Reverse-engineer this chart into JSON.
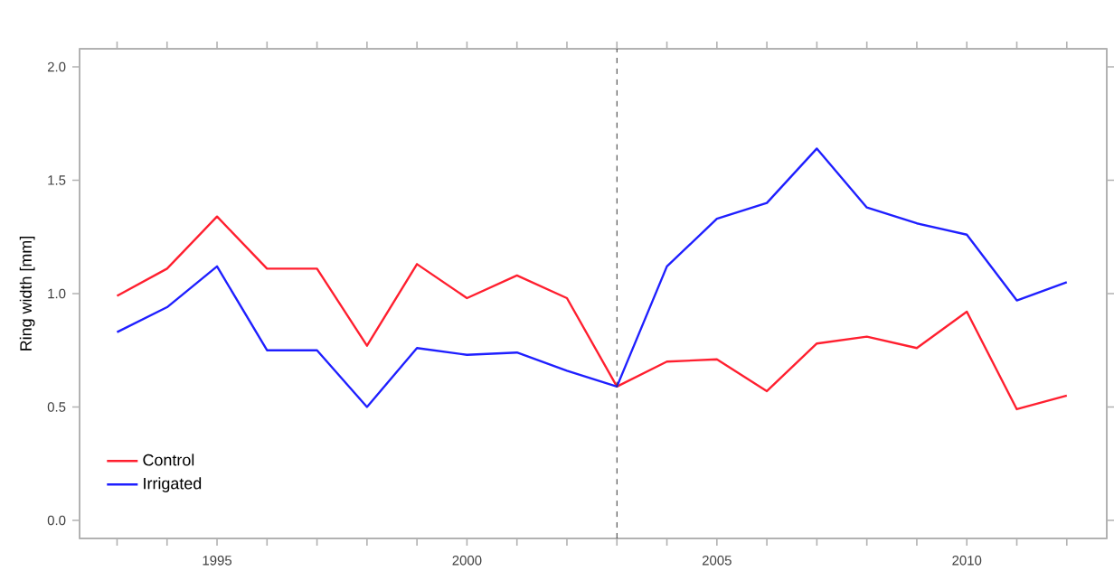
{
  "chart_data": {
    "type": "line",
    "ylabel": "Ring width [mm]",
    "x": [
      1993,
      1994,
      1995,
      1996,
      1997,
      1998,
      1999,
      2000,
      2001,
      2002,
      2003,
      2004,
      2005,
      2006,
      2007,
      2008,
      2009,
      2010,
      2011,
      2012
    ],
    "series": [
      {
        "name": "Control",
        "color": "#ff1f2f",
        "values": [
          0.99,
          1.11,
          1.34,
          1.11,
          1.11,
          0.77,
          1.13,
          0.98,
          1.08,
          0.98,
          0.59,
          0.7,
          0.71,
          0.57,
          0.78,
          0.81,
          0.76,
          0.92,
          0.49,
          0.55
        ]
      },
      {
        "name": "Irrigated",
        "color": "#1f1fff",
        "values": [
          0.83,
          0.94,
          1.12,
          0.75,
          0.75,
          0.5,
          0.76,
          0.73,
          0.74,
          0.66,
          0.59,
          1.12,
          1.33,
          1.4,
          1.64,
          1.38,
          1.31,
          1.26,
          0.97,
          1.05
        ]
      }
    ],
    "xlim": [
      1992.25,
      2012.8
    ],
    "ylim": [
      -0.08,
      2.08
    ],
    "xticks": [
      {
        "value": 1993,
        "label": null
      },
      {
        "value": 1994,
        "label": null
      },
      1995,
      {
        "value": 1996,
        "label": null
      },
      {
        "value": 1997,
        "label": null
      },
      {
        "value": 1998,
        "label": null
      },
      {
        "value": 1999,
        "label": null
      },
      2000,
      {
        "value": 2001,
        "label": null
      },
      {
        "value": 2002,
        "label": null
      },
      {
        "value": 2003,
        "label": null
      },
      {
        "value": 2004,
        "label": null
      },
      2005,
      {
        "value": 2006,
        "label": null
      },
      {
        "value": 2007,
        "label": null
      },
      {
        "value": 2008,
        "label": null
      },
      {
        "value": 2009,
        "label": null
      },
      2010,
      {
        "value": 2011,
        "label": null
      },
      {
        "value": 2012,
        "label": null
      }
    ],
    "yticks": [
      {
        "value": 0,
        "label": "0.0"
      },
      0.5,
      {
        "value": 1,
        "label": "1.0"
      },
      1.5,
      {
        "value": 2,
        "label": "2.0"
      }
    ],
    "ref_lines": [
      {
        "axis": "x",
        "value": 2003,
        "line_style": "dashed"
      }
    ],
    "grid": false,
    "legend": "bottom left",
    "line_style": "solid",
    "marker": "none"
  }
}
